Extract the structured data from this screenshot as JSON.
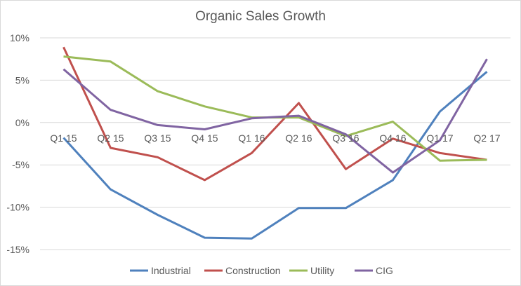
{
  "chart_data": {
    "type": "line",
    "title": "Organic Sales Growth",
    "xlabel": "",
    "ylabel": "",
    "categories": [
      "Q1 15",
      "Q2 15",
      "Q3 15",
      "Q4 15",
      "Q1 16",
      "Q2 16",
      "Q3 16",
      "Q4 16",
      "Q1 17",
      "Q2 17"
    ],
    "ylim": [
      -15,
      10
    ],
    "yticks": [
      10,
      5,
      0,
      -5,
      -10,
      -15
    ],
    "ytick_labels": [
      "10%",
      "5%",
      "0%",
      "-5%",
      "-10%",
      "-15%"
    ],
    "grid": true,
    "legend": "bottom",
    "series": [
      {
        "name": "Industrial",
        "color": "#4f81bd",
        "values": [
          -1.8,
          -7.9,
          -10.9,
          -13.6,
          -13.7,
          -10.1,
          -10.1,
          -6.8,
          1.3,
          6.0
        ]
      },
      {
        "name": "Construction",
        "color": "#c0504d",
        "values": [
          8.9,
          -3.0,
          -4.1,
          -6.8,
          -3.6,
          2.3,
          -5.5,
          -1.9,
          -3.6,
          -4.4
        ]
      },
      {
        "name": "Utility",
        "color": "#9bbb59",
        "values": [
          7.8,
          7.2,
          3.7,
          1.9,
          0.6,
          0.6,
          -1.6,
          0.1,
          -4.5,
          -4.4
        ]
      },
      {
        "name": "CIG",
        "color": "#8064a2",
        "values": [
          6.3,
          1.5,
          -0.3,
          -0.8,
          0.5,
          0.8,
          -1.4,
          -5.9,
          -2.1,
          7.5
        ]
      }
    ]
  }
}
